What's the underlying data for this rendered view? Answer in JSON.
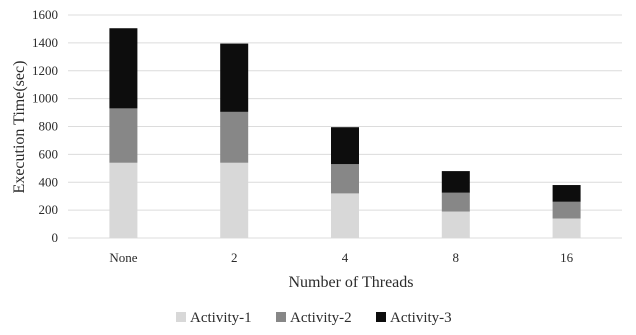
{
  "chart_data": {
    "type": "bar",
    "stacked": true,
    "title": "",
    "xlabel": "Number of Threads",
    "ylabel": "Execution Time(sec)",
    "categories": [
      "None",
      "2",
      "4",
      "8",
      "16"
    ],
    "series": [
      {
        "name": "Activity-1",
        "color": "#d8d8d8",
        "values": [
          540,
          540,
          320,
          190,
          140
        ]
      },
      {
        "name": "Activity-2",
        "color": "#878787",
        "values": [
          390,
          365,
          210,
          135,
          120
        ]
      },
      {
        "name": "Activity-3",
        "color": "#0d0d0d",
        "values": [
          575,
          490,
          265,
          155,
          120
        ]
      }
    ],
    "ylim": [
      0,
      1600
    ],
    "yticks": [
      0,
      200,
      400,
      600,
      800,
      1000,
      1200,
      1400,
      1600
    ],
    "grid": true,
    "legend_position": "bottom-center"
  }
}
